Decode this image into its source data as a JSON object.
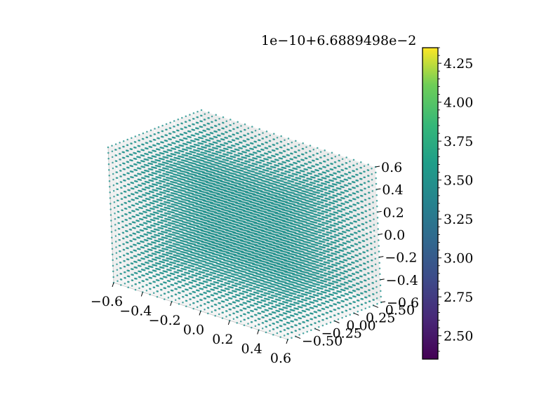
{
  "chart_data": {
    "type": "scatter",
    "projection": "3d",
    "grid": "on",
    "x": {
      "min": -0.6,
      "max": 0.6,
      "step": 0.05
    },
    "y": {
      "min": -0.6,
      "max": 0.6,
      "step": 0.05
    },
    "z": {
      "min": -0.6,
      "max": 0.6,
      "step": 0.05
    },
    "marker_value": 3.4,
    "point_color": "#21918c",
    "x_ticks": [
      "−0.6",
      "−0.4",
      "−0.2",
      "0.0",
      "0.2",
      "0.4",
      "0.6"
    ],
    "y_ticks": [
      "−0.50",
      "−0.25",
      "0.00",
      "0.25",
      "0.50"
    ],
    "z_ticks": [
      "−0.6",
      "−0.4",
      "−0.2",
      "0.0",
      "0.2",
      "0.4",
      "0.6"
    ],
    "colorbar": {
      "colormap": "viridis",
      "offset_label": "1e−10+6.6889498e−2",
      "range": [
        2.35,
        4.35
      ],
      "ticks": [
        "2.50",
        "2.75",
        "3.00",
        "3.25",
        "3.50",
        "3.75",
        "4.00",
        "4.25"
      ],
      "tick_values": [
        2.5,
        2.75,
        3.0,
        3.25,
        3.5,
        3.75,
        4.0,
        4.25
      ]
    }
  }
}
